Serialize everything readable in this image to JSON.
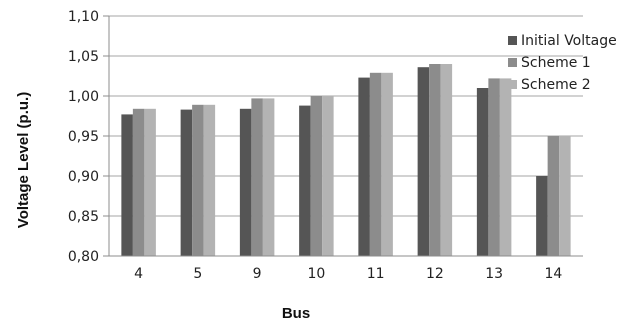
{
  "chart_data": {
    "type": "bar",
    "title": "",
    "xlabel": "Bus",
    "ylabel": "Voltage Level (p.u.)",
    "categories": [
      "4",
      "5",
      "9",
      "10",
      "11",
      "12",
      "13",
      "14"
    ],
    "ylim": [
      0.8,
      1.1
    ],
    "yticks": [
      "0,80",
      "0,85",
      "0,90",
      "0,95",
      "1,00",
      "1,05",
      "1,10"
    ],
    "grid": true,
    "legend_position": "right",
    "series": [
      {
        "name": "Initial Voltage",
        "color": "#555555",
        "values": [
          0.977,
          0.983,
          0.984,
          0.988,
          1.023,
          1.036,
          1.01,
          0.9
        ]
      },
      {
        "name": "Scheme 1",
        "color": "#8c8c8c",
        "values": [
          0.984,
          0.989,
          0.997,
          1.0,
          1.029,
          1.04,
          1.022,
          0.95
        ]
      },
      {
        "name": "Scheme 2",
        "color": "#b3b3b3",
        "values": [
          0.984,
          0.989,
          0.997,
          1.0,
          1.029,
          1.04,
          1.022,
          0.95
        ]
      }
    ]
  }
}
